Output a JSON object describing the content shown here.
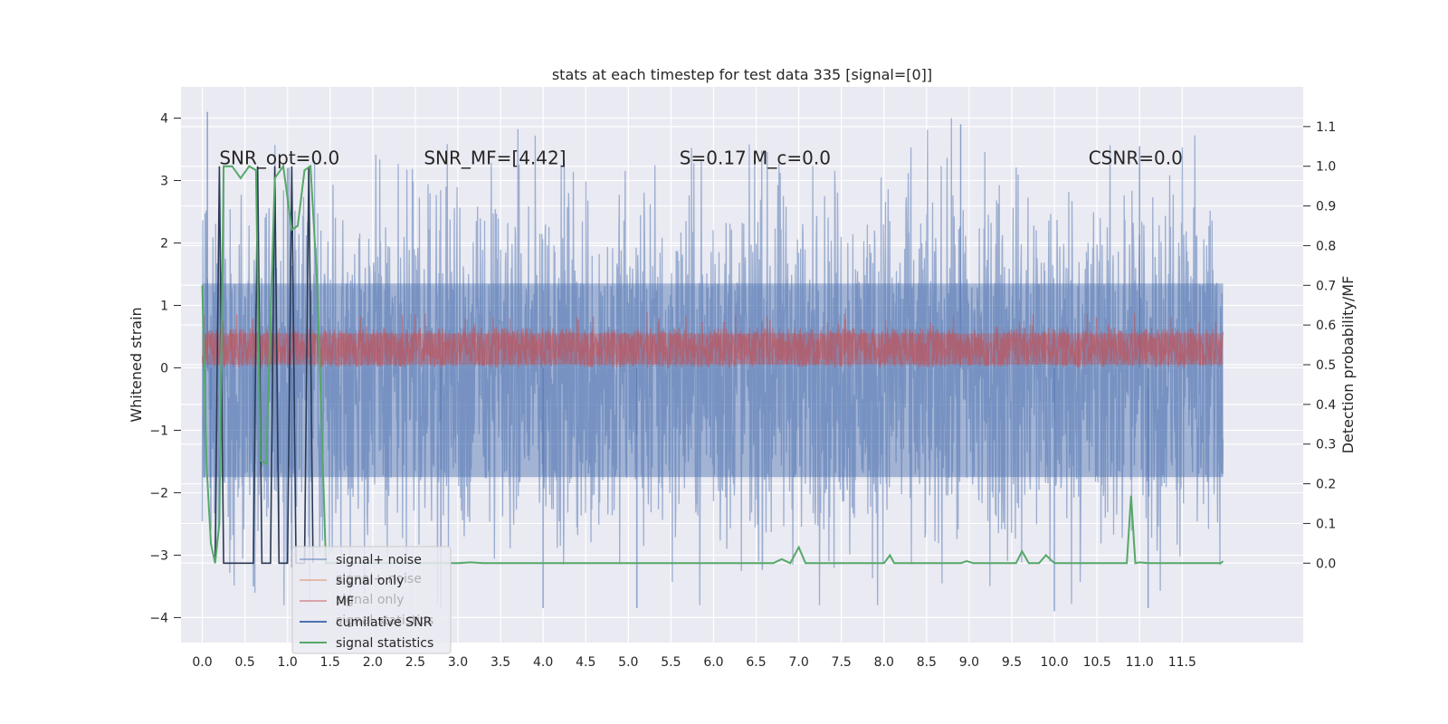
{
  "chart_data": {
    "type": "line",
    "title": "stats at each timestep for test data 335 [signal=[0]]",
    "xlabel": "",
    "ylabel": "Whitened strain",
    "y2label": "Detection probability/MF",
    "xlim": [
      -0.25,
      12.92
    ],
    "ylim": [
      -4.4,
      4.5
    ],
    "y2lim": [
      -0.2,
      1.2
    ],
    "x_ticks": [
      "0.0",
      "0.5",
      "1.0",
      "1.5",
      "2.0",
      "2.5",
      "3.0",
      "3.5",
      "4.0",
      "4.5",
      "5.0",
      "5.5",
      "6.0",
      "6.5",
      "7.0",
      "7.5",
      "8.0",
      "8.5",
      "9.0",
      "9.5",
      "10.0",
      "10.5",
      "11.0",
      "11.5"
    ],
    "y_ticks": [
      -4,
      -3,
      -2,
      -1,
      0,
      1,
      2,
      3,
      4
    ],
    "y2_ticks": [
      "0.0",
      "0.1",
      "0.2",
      "0.3",
      "0.4",
      "0.5",
      "0.6",
      "0.7",
      "0.8",
      "0.9",
      "1.0",
      "1.1"
    ],
    "grid": true,
    "legend_placement": "lower-left",
    "legend": [
      "signal+ noise",
      "signal only",
      "MF",
      "cumilative SNR",
      "signal statistics"
    ],
    "legend_ghost": [
      "signal+ noise",
      "signal only",
      "signal statistics"
    ],
    "annotations": [
      {
        "text": "SNR_opt=0.0",
        "x": 0.2,
        "y": 3.2
      },
      {
        "text": "SNR_MF=[4.42]",
        "x": 2.6,
        "y": 3.2
      },
      {
        "text": "S=0.17   M_c=0.0",
        "x": 5.6,
        "y": 3.2
      },
      {
        "text": "CSNR=0.0",
        "x": 10.4,
        "y": 3.2
      }
    ],
    "series": [
      {
        "name": "signal+ noise",
        "color": "#4c72b0",
        "axis": "left",
        "description": "noise band roughly between -2.2 and 2.2 with spikes to about -3.9 and 4.1",
        "x_range": [
          0.0,
          11.98
        ],
        "band": [
          -2.2,
          2.2
        ],
        "spikes": [
          [
            0.06,
            4.1
          ],
          [
            0.1,
            -2.6
          ],
          [
            0.6,
            -3.5
          ],
          [
            1.0,
            3.2
          ],
          [
            1.05,
            -3.2
          ],
          [
            2.8,
            -3.85
          ],
          [
            4.0,
            -3.85
          ],
          [
            5.1,
            -3.85
          ],
          [
            8.9,
            3.9
          ],
          [
            10.0,
            -3.9
          ],
          [
            11.1,
            -3.85
          ],
          [
            11.0,
            3.55
          ]
        ]
      },
      {
        "name": "MF",
        "color": "#c44e52",
        "axis": "left",
        "description": "matched filter band roughly between 0.0 and 0.7",
        "x_range": [
          0.0,
          11.98
        ],
        "band": [
          0.0,
          0.75
        ]
      },
      {
        "name": "cumilative SNR",
        "color": "#2b3a55",
        "axis": "right",
        "points": [
          [
            0.15,
            0.0
          ],
          [
            0.2,
            1.0
          ],
          [
            0.25,
            0.0
          ],
          [
            0.6,
            0.0
          ],
          [
            0.65,
            1.0
          ],
          [
            0.7,
            0.0
          ],
          [
            0.8,
            0.0
          ],
          [
            0.85,
            1.0
          ],
          [
            0.9,
            0.0
          ],
          [
            1.0,
            0.0
          ],
          [
            1.05,
            1.0
          ],
          [
            1.1,
            0.0
          ],
          [
            1.2,
            0.0
          ],
          [
            1.25,
            1.0
          ],
          [
            1.3,
            0.0
          ]
        ]
      },
      {
        "name": "signal statistics",
        "color": "#55a868",
        "axis": "right",
        "points": [
          [
            0.0,
            0.7
          ],
          [
            0.05,
            0.25
          ],
          [
            0.1,
            0.05
          ],
          [
            0.15,
            0.0
          ],
          [
            0.2,
            0.1
          ],
          [
            0.25,
            1.0
          ],
          [
            0.35,
            1.0
          ],
          [
            0.45,
            0.97
          ],
          [
            0.55,
            1.0
          ],
          [
            0.63,
            0.99
          ],
          [
            0.68,
            0.26
          ],
          [
            0.75,
            0.25
          ],
          [
            0.85,
            0.97
          ],
          [
            0.95,
            1.0
          ],
          [
            1.05,
            0.84
          ],
          [
            1.12,
            0.85
          ],
          [
            1.2,
            0.99
          ],
          [
            1.27,
            1.0
          ],
          [
            1.35,
            0.7
          ],
          [
            1.45,
            0.0
          ],
          [
            2.5,
            0.0
          ],
          [
            3.0,
            0.0
          ],
          [
            3.15,
            0.002
          ],
          [
            3.3,
            0.0
          ],
          [
            6.7,
            0.0
          ],
          [
            6.8,
            0.01
          ],
          [
            6.9,
            0.0
          ],
          [
            7.0,
            0.04
          ],
          [
            7.08,
            0.0
          ],
          [
            8.0,
            0.0
          ],
          [
            8.07,
            0.02
          ],
          [
            8.12,
            0.0
          ],
          [
            8.9,
            0.0
          ],
          [
            8.97,
            0.005
          ],
          [
            9.05,
            0.0
          ],
          [
            9.55,
            0.0
          ],
          [
            9.62,
            0.03
          ],
          [
            9.7,
            0.0
          ],
          [
            9.82,
            0.0
          ],
          [
            9.9,
            0.02
          ],
          [
            10.0,
            0.0
          ],
          [
            10.85,
            0.0
          ],
          [
            10.9,
            0.17
          ],
          [
            10.95,
            0.0
          ],
          [
            11.0,
            0.002
          ],
          [
            11.1,
            0.0
          ],
          [
            11.95,
            0.0
          ],
          [
            11.98,
            0.005
          ]
        ]
      }
    ]
  }
}
